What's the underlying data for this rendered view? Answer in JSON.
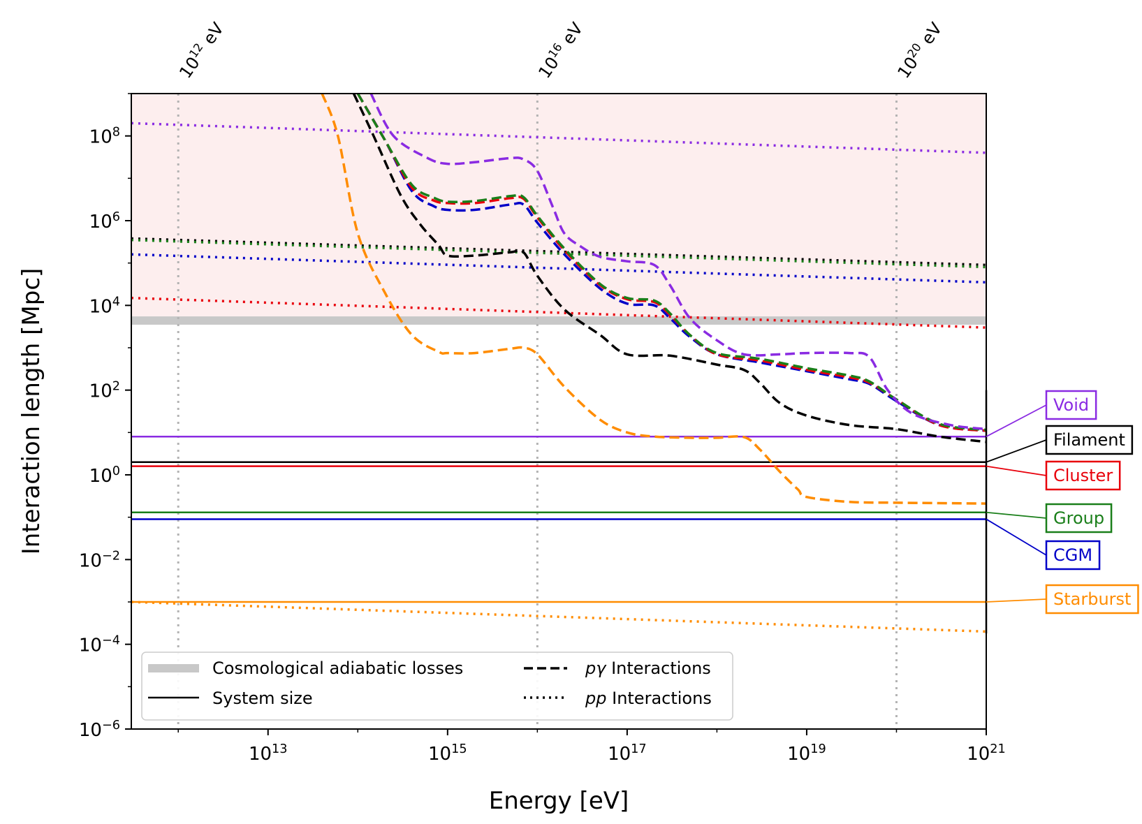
{
  "chart_data": {
    "type": "line",
    "xlabel": "Energy [eV]",
    "ylabel": "Interaction length [Mpc]",
    "xscale": "log",
    "yscale": "log",
    "xlim": [
      300000000000.0,
      1e+21
    ],
    "ylim": [
      1e-06,
      1000000000.0
    ],
    "x_ticks": [
      {
        "value": 10000000000000.0,
        "base": "10",
        "exp": "13"
      },
      {
        "value": 1000000000000000.0,
        "base": "10",
        "exp": "15"
      },
      {
        "value": 1e+17,
        "base": "10",
        "exp": "17"
      },
      {
        "value": 1e+19,
        "base": "10",
        "exp": "19"
      },
      {
        "value": 1e+21,
        "base": "10",
        "exp": "21"
      }
    ],
    "y_ticks": [
      {
        "value": 1e-06,
        "base": "10",
        "exp": "−6"
      },
      {
        "value": 0.0001,
        "base": "10",
        "exp": "−4"
      },
      {
        "value": 0.01,
        "base": "10",
        "exp": "−2"
      },
      {
        "value": 1.0,
        "base": "10",
        "exp": "0"
      },
      {
        "value": 100.0,
        "base": "10",
        "exp": "2"
      },
      {
        "value": 10000.0,
        "base": "10",
        "exp": "4"
      },
      {
        "value": 1000000.0,
        "base": "10",
        "exp": "6"
      },
      {
        "value": 100000000.0,
        "base": "10",
        "exp": "8"
      }
    ],
    "top_markers": [
      {
        "value": 1000000000000.0,
        "base": "10",
        "exp": "12",
        "unit": "eV"
      },
      {
        "value": 1e+16,
        "base": "10",
        "exp": "16",
        "unit": "eV"
      },
      {
        "value": 1e+20,
        "base": "10",
        "exp": "20",
        "unit": "eV"
      }
    ],
    "cosmological_band": {
      "y_low": 3500,
      "y_high": 5500,
      "shade_above": true
    },
    "environments": [
      {
        "name": "Void",
        "color": "#8a2be2",
        "system_size": 8,
        "pp": [
          [
            300000000000.0,
            200000000.0
          ],
          [
            1e+21,
            40000000.0
          ]
        ],
        "pgamma": [
          [
            140000000000000.0,
            1000000000.0
          ],
          [
            250000000000000.0,
            100000000.0
          ],
          [
            600000000000000.0,
            30000000.0
          ],
          [
            1000000000000000.0,
            22000000.0
          ],
          [
            2000000000000000.0,
            24000000.0
          ],
          [
            5000000000000000.0,
            30000000.0
          ],
          [
            7000000000000000.0,
            28000000.0
          ],
          [
            1e+16,
            15000000.0
          ],
          [
            1.5e+16,
            2000000.0
          ],
          [
            2e+16,
            500000.0
          ],
          [
            3e+16,
            250000.0
          ],
          [
            5e+16,
            140000.0
          ],
          [
            1e+17,
            110000.0
          ],
          [
            2e+17,
            90000.0
          ],
          [
            3e+17,
            30000.0
          ],
          [
            5e+17,
            5000.0
          ],
          [
            1e+18,
            1500.0
          ],
          [
            2e+18,
            700.0
          ],
          [
            5e+18,
            700.0
          ],
          [
            1e+19,
            750.0
          ],
          [
            3e+19,
            750.0
          ],
          [
            5e+19,
            600.0
          ],
          [
            8e+19,
            100.0
          ],
          [
            1.5e+20,
            28.0
          ],
          [
            4e+20,
            15.0
          ],
          [
            1e+21,
            12.0
          ]
        ]
      },
      {
        "name": "Filament",
        "color": "#000000",
        "system_size": 2,
        "pp": [
          [
            300000000000.0,
            380000.0
          ],
          [
            1e+21,
            90000.0
          ]
        ],
        "pgamma": [
          [
            90000000000000.0,
            1000000000.0
          ],
          [
            150000000000000.0,
            100000000.0
          ],
          [
            300000000000000.0,
            4000000.0
          ],
          [
            500000000000000.0,
            800000.0
          ],
          [
            800000000000000.0,
            260000.0
          ],
          [
            1000000000000000.0,
            150000.0
          ],
          [
            2000000000000000.0,
            150000.0
          ],
          [
            5000000000000000.0,
            180000.0
          ],
          [
            7000000000000000.0,
            180000.0
          ],
          [
            1e+16,
            50000.0
          ],
          [
            2e+16,
            8000.0
          ],
          [
            5e+16,
            2000.0
          ],
          [
            1e+17,
            700.0
          ],
          [
            3e+17,
            650.0
          ],
          [
            1e+18,
            400.0
          ],
          [
            2e+18,
            300.0
          ],
          [
            3e+18,
            150.0
          ],
          [
            5e+18,
            50.0
          ],
          [
            1e+19,
            25.0
          ],
          [
            3e+19,
            15.0
          ],
          [
            1e+20,
            12.0
          ],
          [
            3e+20,
            8
          ],
          [
            1e+21,
            6
          ]
        ]
      },
      {
        "name": "Cluster",
        "color": "#e8000b",
        "system_size": 1.6,
        "pp": [
          [
            300000000000.0,
            15000.0
          ],
          [
            1e+21,
            3000.0
          ]
        ],
        "pgamma": [
          [
            100000000000000.0,
            1000000000.0
          ],
          [
            200000000000000.0,
            80000000.0
          ],
          [
            400000000000000.0,
            6000000.0
          ],
          [
            700000000000000.0,
            3000000.0
          ],
          [
            1000000000000000.0,
            2600000.0
          ],
          [
            2000000000000000.0,
            2600000.0
          ],
          [
            5000000000000000.0,
            3400000.0
          ],
          [
            7000000000000000.0,
            3300000.0
          ],
          [
            1e+16,
            1200000.0
          ],
          [
            2e+16,
            200000.0
          ],
          [
            5e+16,
            30000.0
          ],
          [
            1e+17,
            14000.0
          ],
          [
            2e+17,
            12000.0
          ],
          [
            3e+17,
            6000.0
          ],
          [
            5e+17,
            2000.0
          ],
          [
            1e+18,
            700.0
          ],
          [
            3e+18,
            500.0
          ],
          [
            1e+19,
            300.0
          ],
          [
            3e+19,
            200.0
          ],
          [
            5e+19,
            150.0
          ],
          [
            1e+20,
            60.0
          ],
          [
            3e+20,
            15.0
          ],
          [
            1e+21,
            11.0
          ]
        ]
      },
      {
        "name": "Group",
        "color": "#1a7f1a",
        "system_size": 0.13,
        "pp": [
          [
            300000000000.0,
            350000.0
          ],
          [
            1e+21,
            80000.0
          ]
        ],
        "pgamma": [
          [
            100000000000000.0,
            1000000000.0
          ],
          [
            200000000000000.0,
            80000000.0
          ],
          [
            400000000000000.0,
            7000000.0
          ],
          [
            700000000000000.0,
            3500000.0
          ],
          [
            1000000000000000.0,
            2800000.0
          ],
          [
            2000000000000000.0,
            2900000.0
          ],
          [
            5000000000000000.0,
            3800000.0
          ],
          [
            7000000000000000.0,
            3600000.0
          ],
          [
            1e+16,
            1300000.0
          ],
          [
            2e+16,
            220000.0
          ],
          [
            5e+16,
            32000.0
          ],
          [
            1e+17,
            15000.0
          ],
          [
            2e+17,
            13000.0
          ],
          [
            3e+17,
            6500.0
          ],
          [
            5e+17,
            2000.0
          ],
          [
            1e+18,
            750.0
          ],
          [
            3e+18,
            550.0
          ],
          [
            1e+19,
            330.0
          ],
          [
            3e+19,
            220.0
          ],
          [
            5e+19,
            160.0
          ],
          [
            1e+20,
            60.0
          ],
          [
            3e+20,
            16.0
          ],
          [
            1e+21,
            11.5
          ]
        ]
      },
      {
        "name": "CGM",
        "color": "#0000c8",
        "system_size": 0.09,
        "pp": [
          [
            300000000000.0,
            160000.0
          ],
          [
            1e+21,
            35000.0
          ]
        ],
        "pgamma": [
          [
            100000000000000.0,
            1000000000.0
          ],
          [
            200000000000000.0,
            80000000.0
          ],
          [
            400000000000000.0,
            5000000.0
          ],
          [
            700000000000000.0,
            2200000.0
          ],
          [
            1000000000000000.0,
            1800000.0
          ],
          [
            2000000000000000.0,
            1800000.0
          ],
          [
            5000000000000000.0,
            2400000.0
          ],
          [
            7000000000000000.0,
            2400000.0
          ],
          [
            1e+16,
            900000.0
          ],
          [
            2e+16,
            160000.0
          ],
          [
            5e+16,
            25000.0
          ],
          [
            1e+17,
            11000.0
          ],
          [
            2e+17,
            10000.0
          ],
          [
            3e+17,
            5000.0
          ],
          [
            5e+17,
            1800.0
          ],
          [
            1e+18,
            700.0
          ],
          [
            3e+18,
            450.0
          ],
          [
            1e+19,
            280.0
          ],
          [
            3e+19,
            180.0
          ],
          [
            5e+19,
            140.0
          ],
          [
            1e+20,
            55.0
          ],
          [
            3e+20,
            15.0
          ],
          [
            1e+21,
            11.0
          ]
        ]
      },
      {
        "name": "Starburst",
        "color": "#ff8c00",
        "system_size": 0.001,
        "pp": [
          [
            300000000000.0,
            0.001
          ],
          [
            1e+21,
            0.0002
          ]
        ],
        "pgamma": [
          [
            40000000000000.0,
            1000000000.0
          ],
          [
            60000000000000.0,
            100000000.0
          ],
          [
            100000000000000.0,
            500000.0
          ],
          [
            200000000000000.0,
            20000.0
          ],
          [
            400000000000000.0,
            2000.0
          ],
          [
            800000000000000.0,
            800.0
          ],
          [
            1000000000000000.0,
            750.0
          ],
          [
            2000000000000000.0,
            750.0
          ],
          [
            5000000000000000.0,
            950.0
          ],
          [
            7000000000000000.0,
            1000.0
          ],
          [
            1e+16,
            700.0
          ],
          [
            2e+16,
            120.0
          ],
          [
            5e+16,
            20.0
          ],
          [
            1e+17,
            10.0
          ],
          [
            2e+17,
            8
          ],
          [
            5e+17,
            7.5
          ],
          [
            1e+18,
            7.5
          ],
          [
            2e+18,
            7.8
          ],
          [
            3e+18,
            4
          ],
          [
            5e+18,
            1.2
          ],
          [
            8e+18,
            0.45
          ],
          [
            1e+19,
            0.3
          ],
          [
            3e+19,
            0.23
          ],
          [
            1e+20,
            0.22
          ],
          [
            1e+21,
            0.21
          ]
        ]
      }
    ],
    "legend": {
      "placement": "lower-left",
      "entries": [
        {
          "label": "Cosmological adiabatic losses",
          "style": "band"
        },
        {
          "label": "System size",
          "style": "solid"
        },
        {
          "label_math": "pγ",
          "label": "Interactions",
          "style": "dashed"
        },
        {
          "label_math": "pp",
          "label": "Interactions",
          "style": "dotted"
        }
      ]
    }
  }
}
